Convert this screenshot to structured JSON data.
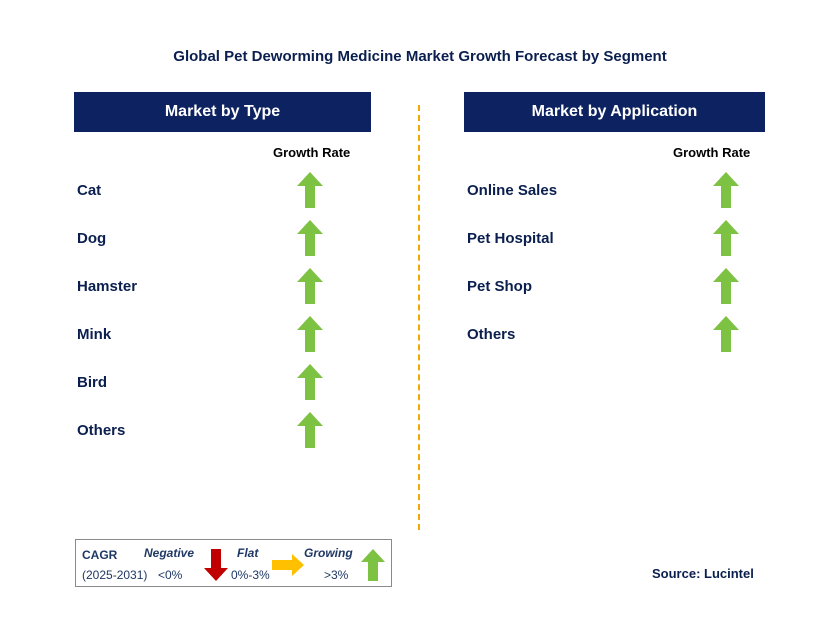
{
  "title": "Global Pet Deworming Medicine Market Growth Forecast by Segment",
  "colors": {
    "header_bg": "#0d2260",
    "growth_arrow": "#7dc242",
    "negative_arrow": "#c00000",
    "flat_arrow": "#ffc000",
    "divider": "#f2a900"
  },
  "panels": [
    {
      "header": "Market by Type",
      "column_header": "Growth Rate",
      "rows": [
        {
          "label": "Cat",
          "trend": "growing"
        },
        {
          "label": "Dog",
          "trend": "growing"
        },
        {
          "label": "Hamster",
          "trend": "growing"
        },
        {
          "label": "Mink",
          "trend": "growing"
        },
        {
          "label": "Bird",
          "trend": "growing"
        },
        {
          "label": "Others",
          "trend": "growing"
        }
      ]
    },
    {
      "header": "Market by Application",
      "column_header": "Growth Rate",
      "rows": [
        {
          "label": "Online Sales",
          "trend": "growing"
        },
        {
          "label": "Pet Hospital",
          "trend": "growing"
        },
        {
          "label": "Pet Shop",
          "trend": "growing"
        },
        {
          "label": "Others",
          "trend": "growing"
        }
      ]
    }
  ],
  "legend": {
    "cagr": "CAGR",
    "period": "(2025-2031)",
    "negative": "Negative",
    "negative_range": "<0%",
    "flat": "Flat",
    "flat_range": "0%-3%",
    "growing": "Growing",
    "growing_range": ">3%"
  },
  "source": "Source: Lucintel"
}
